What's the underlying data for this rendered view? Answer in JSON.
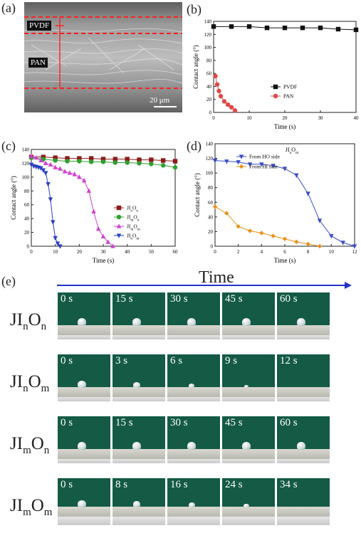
{
  "panels": {
    "a": {
      "label": "(a)",
      "layer_top": "PVDF",
      "layer_bottom": "PAN",
      "scalebar": "20 μm"
    },
    "e": {
      "label": "(e)",
      "time_title": "Time"
    }
  },
  "chart_data": [
    {
      "id": "b",
      "panel_label": "(b)",
      "type": "line",
      "xlabel": "Time (s)",
      "ylabel": "Contact angle (°)",
      "xlim": [
        0,
        40
      ],
      "ylim": [
        0,
        140
      ],
      "xticks": [
        0,
        10,
        20,
        30,
        40
      ],
      "yticks": [
        0,
        20,
        40,
        60,
        80,
        100,
        120,
        140
      ],
      "legend_position": "bottom-right",
      "series": [
        {
          "name": "PVDF",
          "color": "#111111",
          "marker": "square",
          "x": [
            0,
            5,
            10,
            15,
            20,
            25,
            30,
            35,
            40
          ],
          "y": [
            132,
            132,
            132,
            130,
            130,
            130,
            130,
            128,
            127
          ]
        },
        {
          "name": "PAN",
          "color": "#e04848",
          "marker": "circle",
          "x": [
            0.5,
            1,
            1.5,
            2,
            3,
            4,
            5,
            6
          ],
          "y": [
            56,
            43,
            33,
            25,
            17,
            12,
            8,
            3
          ]
        }
      ]
    },
    {
      "id": "c",
      "panel_label": "(c)",
      "type": "line",
      "xlabel": "Time (s)",
      "ylabel": "Contact angle (°)",
      "xlim": [
        0,
        60
      ],
      "ylim": [
        0,
        140
      ],
      "xticks": [
        0,
        10,
        20,
        30,
        40,
        50,
        60
      ],
      "yticks": [
        0,
        20,
        40,
        60,
        80,
        100,
        120,
        140
      ],
      "legend_position": "bottom-right",
      "series": [
        {
          "name": "JI_nO_n",
          "name_parts": [
            "JI",
            "n",
            "O",
            "n"
          ],
          "color": "#8b1a1a",
          "marker": "square",
          "x": [
            0,
            5,
            10,
            15,
            20,
            25,
            30,
            35,
            40,
            45,
            50,
            55,
            60
          ],
          "y": [
            129,
            129,
            128,
            127,
            127,
            127,
            126,
            126,
            126,
            125,
            125,
            124,
            123
          ]
        },
        {
          "name": "JI_mO_n",
          "name_parts": [
            "JI",
            "m",
            "O",
            "n"
          ],
          "color": "#2ea02e",
          "marker": "circle",
          "x": [
            0,
            5,
            10,
            15,
            20,
            25,
            30,
            35,
            40,
            45,
            50,
            55,
            60
          ],
          "y": [
            128,
            126,
            124,
            123,
            123,
            122,
            122,
            121,
            121,
            120,
            119,
            117,
            114
          ]
        },
        {
          "name": "JI_mO_m",
          "name_parts": [
            "JI",
            "m",
            "O",
            "m"
          ],
          "color": "#d040d0",
          "marker": "triangle-up",
          "x": [
            0,
            2,
            4,
            6,
            8,
            10,
            12,
            14,
            16,
            18,
            20,
            22,
            24,
            26,
            28,
            30,
            32,
            34
          ],
          "y": [
            130,
            128,
            124,
            120,
            118,
            114,
            112,
            108,
            106,
            104,
            100,
            95,
            80,
            50,
            25,
            14,
            6,
            0
          ]
        },
        {
          "name": "JI_nO_m",
          "name_parts": [
            "JI",
            "n",
            "O",
            "m"
          ],
          "color": "#2a3ec8",
          "marker": "triangle-down",
          "x": [
            0,
            1,
            2,
            3,
            4,
            5,
            6,
            7,
            8,
            9,
            10,
            11,
            12
          ],
          "y": [
            118,
            116,
            115,
            114,
            113,
            110,
            106,
            90,
            68,
            35,
            12,
            4,
            0
          ]
        }
      ]
    },
    {
      "id": "d",
      "panel_label": "(d)",
      "type": "line",
      "title_parts": [
        "JI",
        "n",
        "O",
        "m"
      ],
      "xlabel": "Time (s)",
      "ylabel": "Contact angle (°)",
      "xlim": [
        0,
        12
      ],
      "ylim": [
        0,
        140
      ],
      "xticks": [
        0,
        2,
        4,
        6,
        8,
        10,
        12
      ],
      "yticks": [
        0,
        20,
        40,
        60,
        80,
        100,
        120,
        140
      ],
      "legend_position": "top-right",
      "series": [
        {
          "name": "From HO side",
          "color": "#3a4ec8",
          "marker": "triangle-down",
          "x": [
            0,
            1,
            2,
            3,
            4,
            5,
            6,
            7,
            8,
            9,
            10,
            11,
            12
          ],
          "y": [
            117,
            116,
            115,
            112,
            112,
            110,
            106,
            97,
            72,
            35,
            14,
            5,
            0
          ]
        },
        {
          "name": "From HI side",
          "color": "#e8921a",
          "marker": "diamond",
          "x": [
            0,
            1,
            2,
            3,
            4,
            5,
            6,
            7,
            8,
            9
          ],
          "y": [
            54,
            45,
            27,
            21,
            18,
            14,
            10,
            6,
            3,
            0
          ]
        }
      ]
    }
  ],
  "rows": [
    {
      "label_parts": [
        "JI",
        "n",
        "O",
        "n"
      ],
      "frames": [
        "0 s",
        "15 s",
        "30 s",
        "45 s",
        "60 s"
      ],
      "drops": [
        1,
        1,
        1,
        1,
        1
      ]
    },
    {
      "label_parts": [
        "JI",
        "n",
        "O",
        "m"
      ],
      "frames": [
        "0 s",
        "3 s",
        "6 s",
        "9 s",
        "12 s"
      ],
      "drops": [
        0.9,
        0.6,
        0.35,
        0.15,
        0
      ]
    },
    {
      "label_parts": [
        "JI",
        "m",
        "O",
        "n"
      ],
      "frames": [
        "0 s",
        "15 s",
        "30 s",
        "45 s",
        "60 s"
      ],
      "drops": [
        1,
        1,
        1,
        1,
        1
      ]
    },
    {
      "label_parts": [
        "JI",
        "m",
        "O",
        "m"
      ],
      "frames": [
        "0 s",
        "8 s",
        "16 s",
        "24 s",
        "34 s"
      ],
      "drops": [
        0.9,
        0.7,
        0.5,
        0.25,
        0
      ]
    }
  ]
}
